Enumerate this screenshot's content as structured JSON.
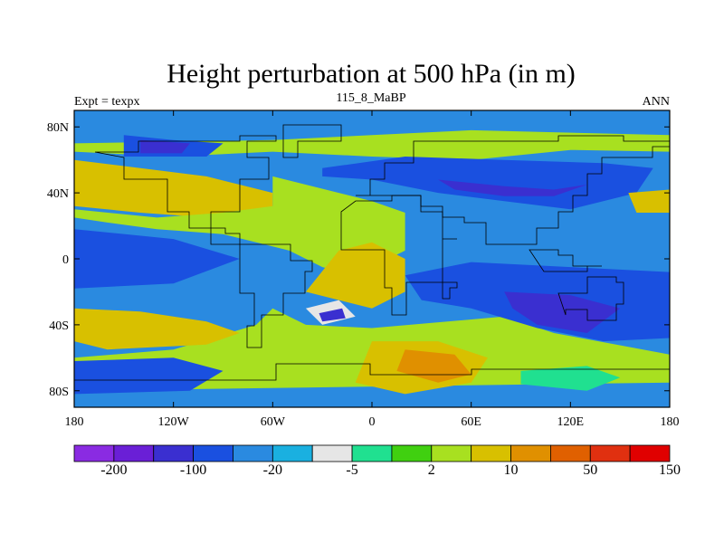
{
  "chart_data": {
    "type": "heatmap",
    "title": "Height perturbation at 500 hPa (in m)",
    "subtitle_left": "Expt = texpx",
    "subtitle_center": "115_8_MaBP",
    "subtitle_right": "ANN",
    "x_ticks": [
      "180",
      "120W",
      "60W",
      "0",
      "60E",
      "120E",
      "180"
    ],
    "y_ticks": [
      "80N",
      "40N",
      "0",
      "40S",
      "80S"
    ],
    "xlim": [
      -180,
      180
    ],
    "ylim": [
      -90,
      90
    ],
    "colorbar": {
      "labels": [
        "-200",
        "-100",
        "-20",
        "-5",
        "2",
        "10",
        "50",
        "150"
      ],
      "colors": [
        "#8a2be2",
        "#6a1fd6",
        "#3a2fd0",
        "#1a50e0",
        "#2a8ae0",
        "#1ab0e0",
        "#e6e6e6",
        "#20e090",
        "#40d010",
        "#a8e020",
        "#d8c000",
        "#e09000",
        "#e06000",
        "#e03010",
        "#e00000"
      ]
    },
    "level_palette": {
      "L3": "#3a2fd0",
      "L4": "#1a50e0",
      "L5": "#2a8ae0",
      "L6": "#1ab0e0",
      "L7": "#e6e6e6",
      "L8": "#20e090",
      "L9": "#40d010",
      "L10": "#a8e020",
      "L11": "#d8c000",
      "L12": "#e09000"
    },
    "regions": [
      {
        "level": "L5",
        "points": [
          [
            -180,
            90
          ],
          [
            180,
            90
          ],
          [
            180,
            -90
          ],
          [
            -180,
            -90
          ]
        ]
      },
      {
        "level": "L10",
        "points": [
          [
            -180,
            70
          ],
          [
            -60,
            72
          ],
          [
            0,
            75
          ],
          [
            60,
            78
          ],
          [
            180,
            75
          ],
          [
            180,
            65
          ],
          [
            120,
            66
          ],
          [
            60,
            60
          ],
          [
            0,
            62
          ],
          [
            -60,
            65
          ],
          [
            -120,
            62
          ],
          [
            -180,
            65
          ]
        ]
      },
      {
        "level": "L11",
        "points": [
          [
            -180,
            60
          ],
          [
            -140,
            55
          ],
          [
            -100,
            50
          ],
          [
            -80,
            45
          ],
          [
            -60,
            40
          ],
          [
            -60,
            30
          ],
          [
            -100,
            25
          ],
          [
            -140,
            28
          ],
          [
            -180,
            32
          ]
        ]
      },
      {
        "level": "L10",
        "points": [
          [
            -60,
            50
          ],
          [
            -20,
            40
          ],
          [
            0,
            35
          ],
          [
            20,
            28
          ],
          [
            20,
            5
          ],
          [
            -10,
            -10
          ],
          [
            -30,
            -5
          ],
          [
            -50,
            5
          ],
          [
            -70,
            10
          ],
          [
            -90,
            15
          ],
          [
            -130,
            18
          ],
          [
            -160,
            22
          ],
          [
            -180,
            25
          ],
          [
            -180,
            30
          ],
          [
            -130,
            25
          ],
          [
            -90,
            28
          ],
          [
            -60,
            32
          ]
        ]
      },
      {
        "level": "L11",
        "points": [
          [
            -40,
            -20
          ],
          [
            0,
            -30
          ],
          [
            20,
            -20
          ],
          [
            20,
            0
          ],
          [
            0,
            10
          ],
          [
            -20,
            5
          ]
        ]
      },
      {
        "level": "L10",
        "points": [
          [
            -60,
            -30
          ],
          [
            -40,
            -40
          ],
          [
            0,
            -42
          ],
          [
            80,
            -35
          ],
          [
            110,
            -45
          ],
          [
            180,
            -58
          ],
          [
            180,
            -75
          ],
          [
            -180,
            -80
          ],
          [
            -180,
            -60
          ],
          [
            -120,
            -55
          ],
          [
            -70,
            -40
          ]
        ]
      },
      {
        "level": "L11",
        "points": [
          [
            0,
            -50
          ],
          [
            40,
            -50
          ],
          [
            70,
            -60
          ],
          [
            60,
            -75
          ],
          [
            20,
            -82
          ],
          [
            -10,
            -75
          ]
        ]
      },
      {
        "level": "L12",
        "points": [
          [
            20,
            -55
          ],
          [
            50,
            -58
          ],
          [
            60,
            -70
          ],
          [
            40,
            -75
          ],
          [
            15,
            -68
          ]
        ]
      },
      {
        "level": "L11",
        "points": [
          [
            -180,
            -30
          ],
          [
            -140,
            -32
          ],
          [
            -100,
            -38
          ],
          [
            -80,
            -45
          ],
          [
            -100,
            -52
          ],
          [
            -160,
            -55
          ],
          [
            -180,
            -50
          ]
        ]
      },
      {
        "level": "L8",
        "points": [
          [
            90,
            -68
          ],
          [
            130,
            -65
          ],
          [
            150,
            -72
          ],
          [
            130,
            -80
          ],
          [
            90,
            -76
          ]
        ]
      },
      {
        "level": "L4",
        "points": [
          [
            -180,
            -62
          ],
          [
            -120,
            -60
          ],
          [
            -90,
            -68
          ],
          [
            -110,
            -80
          ],
          [
            -180,
            -82
          ]
        ]
      },
      {
        "level": "L4",
        "points": [
          [
            -150,
            75
          ],
          [
            -120,
            72
          ],
          [
            -90,
            70
          ],
          [
            -100,
            62
          ],
          [
            -150,
            62
          ]
        ]
      },
      {
        "level": "L3",
        "points": [
          [
            -140,
            72
          ],
          [
            -110,
            70
          ],
          [
            -115,
            64
          ],
          [
            -140,
            64
          ]
        ]
      },
      {
        "level": "L4",
        "points": [
          [
            -30,
            55
          ],
          [
            20,
            62
          ],
          [
            80,
            60
          ],
          [
            140,
            58
          ],
          [
            170,
            55
          ],
          [
            160,
            40
          ],
          [
            120,
            30
          ],
          [
            80,
            35
          ],
          [
            40,
            40
          ],
          [
            0,
            48
          ],
          [
            -30,
            50
          ]
        ]
      },
      {
        "level": "L3",
        "points": [
          [
            40,
            48
          ],
          [
            80,
            44
          ],
          [
            110,
            42
          ],
          [
            130,
            45
          ],
          [
            110,
            38
          ],
          [
            80,
            38
          ],
          [
            50,
            42
          ]
        ]
      },
      {
        "level": "L11",
        "points": [
          [
            155,
            40
          ],
          [
            180,
            42
          ],
          [
            180,
            28
          ],
          [
            160,
            28
          ]
        ]
      },
      {
        "level": "L4",
        "points": [
          [
            -180,
            18
          ],
          [
            -120,
            12
          ],
          [
            -80,
            0
          ],
          [
            -120,
            -15
          ],
          [
            -180,
            -18
          ]
        ]
      },
      {
        "level": "L4",
        "points": [
          [
            20,
            -10
          ],
          [
            60,
            -2
          ],
          [
            120,
            -5
          ],
          [
            180,
            -8
          ],
          [
            180,
            -48
          ],
          [
            140,
            -50
          ],
          [
            100,
            -42
          ],
          [
            60,
            -30
          ],
          [
            30,
            -25
          ]
        ]
      },
      {
        "level": "L3",
        "points": [
          [
            80,
            -20
          ],
          [
            120,
            -22
          ],
          [
            150,
            -30
          ],
          [
            130,
            -45
          ],
          [
            100,
            -40
          ],
          [
            85,
            -30
          ]
        ]
      },
      {
        "level": "L7",
        "points": [
          [
            -40,
            -30
          ],
          [
            -20,
            -25
          ],
          [
            -10,
            -35
          ],
          [
            -30,
            -40
          ]
        ]
      },
      {
        "level": "L3",
        "points": [
          [
            -32,
            -33
          ],
          [
            -18,
            -30
          ],
          [
            -16,
            -36
          ],
          [
            -30,
            -38
          ]
        ]
      }
    ]
  }
}
